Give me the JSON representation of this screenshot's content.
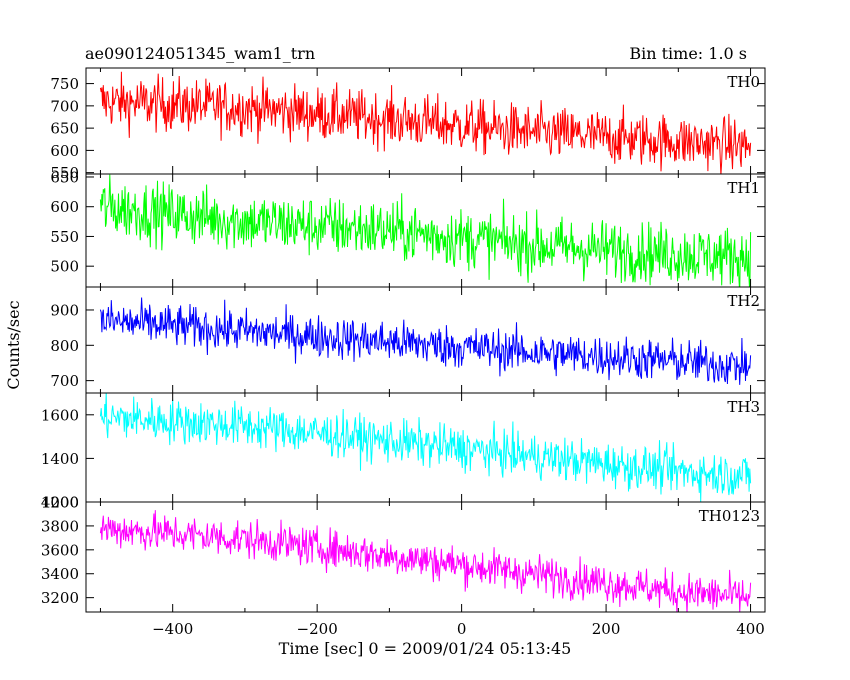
{
  "header": {
    "title": "ae090124051345_wam1_trn",
    "bin_time": "Bin time: 1.0 s"
  },
  "chart_data": {
    "type": "line",
    "title": "ae090124051345_wam1_trn",
    "xlabel": "Time [sec] 0 = 2009/01/24 05:13:45",
    "ylabel": "Counts/sec",
    "xlim": [
      -520,
      420
    ],
    "x_ticks": [
      -400,
      -200,
      0,
      200,
      400
    ],
    "x_tick_labels": [
      "−400",
      "−200",
      "0",
      "200",
      "400"
    ],
    "x_range": [
      -500,
      400
    ],
    "bin_time_s": 1.0,
    "grid": false,
    "panels": [
      {
        "name": "TH0",
        "color": "#ff0000",
        "ylim": [
          547,
          785
        ],
        "yticks": [
          550,
          600,
          650,
          700,
          750
        ],
        "trend": [
          [
            -500,
            710
          ],
          [
            -300,
            695
          ],
          [
            -100,
            670
          ],
          [
            100,
            640
          ],
          [
            300,
            620
          ],
          [
            400,
            610
          ]
        ],
        "noise": 30
      },
      {
        "name": "TH1",
        "color": "#00ff00",
        "ylim": [
          465,
          655
        ],
        "yticks": [
          500,
          550,
          600,
          650
        ],
        "trend": [
          [
            -500,
            600
          ],
          [
            -300,
            575
          ],
          [
            -100,
            560
          ],
          [
            100,
            535
          ],
          [
            300,
            520
          ],
          [
            400,
            515
          ]
        ],
        "noise": 25
      },
      {
        "name": "TH2",
        "color": "#0000ff",
        "ylim": [
          665,
          965
        ],
        "yticks": [
          700,
          800,
          900
        ],
        "trend": [
          [
            -500,
            870
          ],
          [
            -300,
            840
          ],
          [
            -100,
            810
          ],
          [
            100,
            780
          ],
          [
            300,
            755
          ],
          [
            400,
            740
          ]
        ],
        "noise": 30
      },
      {
        "name": "TH3",
        "color": "#00ffff",
        "ylim": [
          1200,
          1700
        ],
        "yticks": [
          1200,
          1400,
          1600
        ],
        "y_tick_labels": [
          "1200",
          "1400",
          "1600"
        ],
        "trend": [
          [
            -500,
            1590
          ],
          [
            -300,
            1550
          ],
          [
            -100,
            1480
          ],
          [
            100,
            1410
          ],
          [
            300,
            1340
          ],
          [
            400,
            1320
          ]
        ],
        "noise": 50
      },
      {
        "name": "TH0123",
        "color": "#ff00ff",
        "ylim": [
          3080,
          4000
        ],
        "yticks": [
          3200,
          3400,
          3600,
          3800,
          4000
        ],
        "trend": [
          [
            -500,
            3780
          ],
          [
            -300,
            3690
          ],
          [
            -100,
            3550
          ],
          [
            100,
            3400
          ],
          [
            300,
            3250
          ],
          [
            400,
            3200
          ]
        ],
        "noise": 80
      }
    ]
  }
}
